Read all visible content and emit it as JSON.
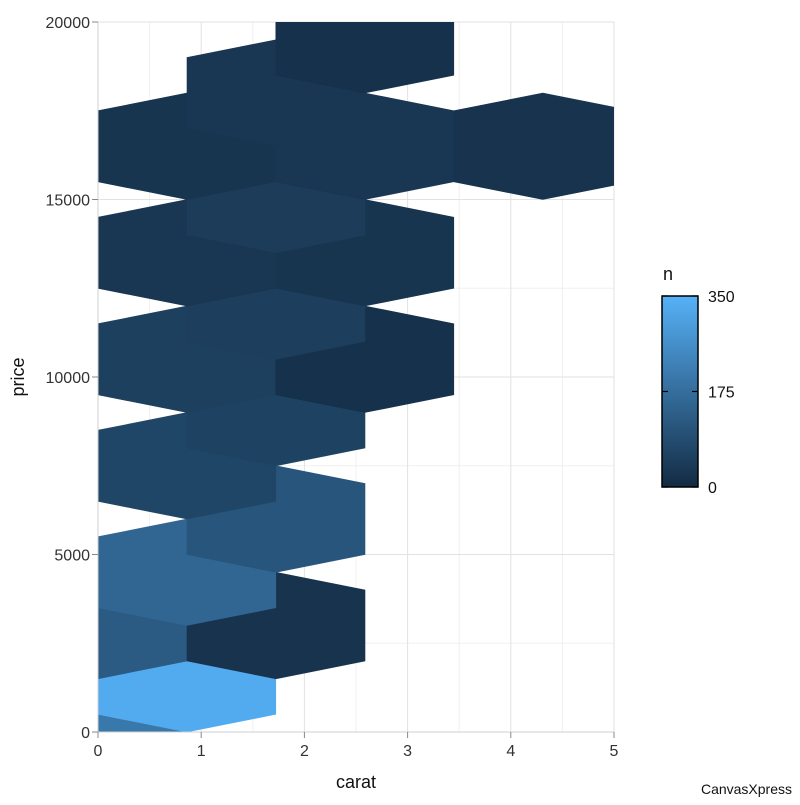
{
  "chart_data": {
    "type": "heatmap",
    "subtype": "hexbin",
    "title": "",
    "xlabel": "carat",
    "ylabel": "price",
    "xlim": [
      0,
      5
    ],
    "ylim": [
      0,
      20000
    ],
    "x_ticks": [
      "0",
      "1",
      "2",
      "3",
      "4",
      "5"
    ],
    "y_ticks": [
      "0",
      "5000",
      "10000",
      "15000",
      "20000"
    ],
    "grid": true,
    "legend": {
      "title": "n",
      "position": "right",
      "min": 0,
      "max": 350,
      "ticks": [
        "0",
        "175",
        "350"
      ],
      "color_low": "#132b43",
      "color_high": "#56b1f7"
    },
    "bin_width": 1.725,
    "bin_height": 3000,
    "bins": [
      {
        "x": 0.0,
        "y": 0,
        "count": 200
      },
      {
        "x": 0.86,
        "y": 1500,
        "count": 335
      },
      {
        "x": 0.0,
        "y": 3000,
        "count": 125
      },
      {
        "x": 1.725,
        "y": 3000,
        "count": 20
      },
      {
        "x": 0.86,
        "y": 4500,
        "count": 155
      },
      {
        "x": 1.725,
        "y": 6000,
        "count": 110
      },
      {
        "x": 0.86,
        "y": 7500,
        "count": 70
      },
      {
        "x": 1.725,
        "y": 9000,
        "count": 60
      },
      {
        "x": 0.86,
        "y": 10500,
        "count": 55
      },
      {
        "x": 2.585,
        "y": 10500,
        "count": 15
      },
      {
        "x": 1.725,
        "y": 12000,
        "count": 50
      },
      {
        "x": 0.86,
        "y": 13500,
        "count": 30
      },
      {
        "x": 2.585,
        "y": 13500,
        "count": 25
      },
      {
        "x": 1.725,
        "y": 15000,
        "count": 45
      },
      {
        "x": 0.86,
        "y": 16500,
        "count": 25
      },
      {
        "x": 2.585,
        "y": 16500,
        "count": 30
      },
      {
        "x": 4.31,
        "y": 16500,
        "count": 20
      },
      {
        "x": 1.725,
        "y": 18000,
        "count": 30
      },
      {
        "x": 2.585,
        "y": 19500,
        "count": 15
      }
    ]
  },
  "credit": "CanvasXpress"
}
